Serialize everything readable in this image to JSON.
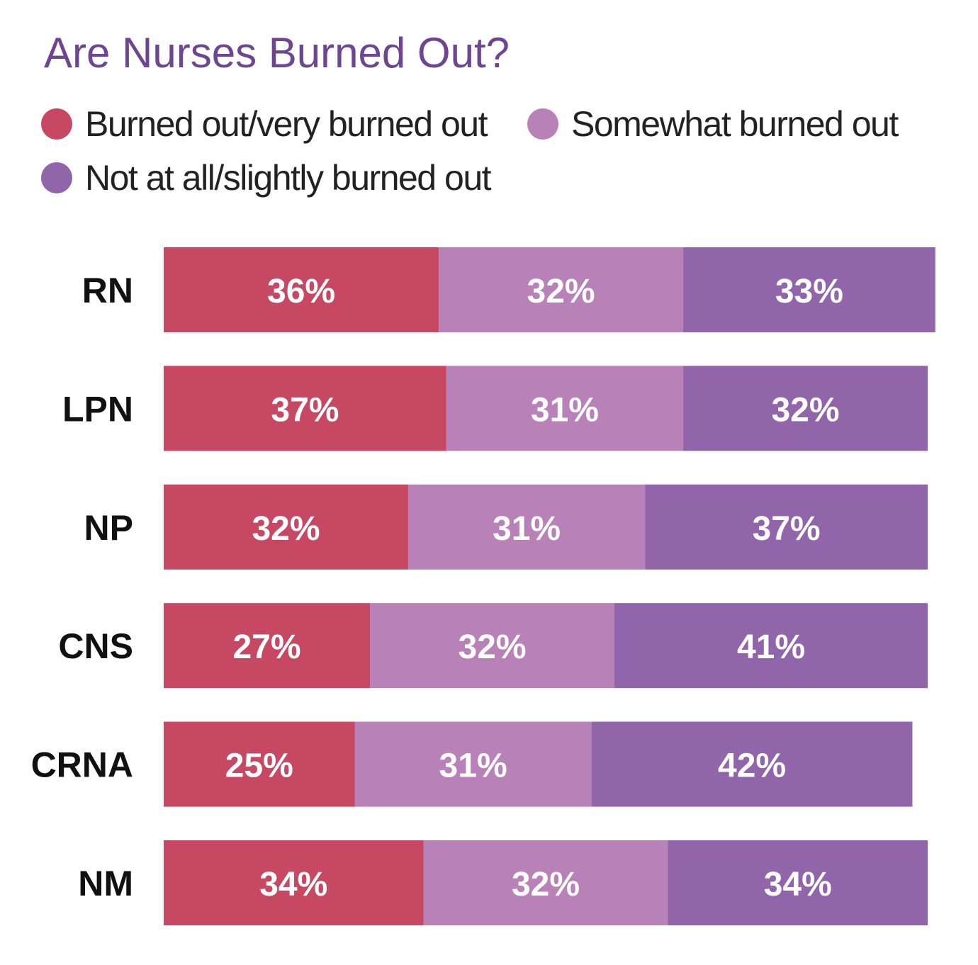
{
  "chart_data": {
    "type": "bar",
    "orientation": "horizontal-stacked",
    "title": "Are Nurses Burned Out?",
    "categories": [
      "RN",
      "LPN",
      "NP",
      "CNS",
      "CRNA",
      "NM"
    ],
    "series": [
      {
        "name": "Burned out/very burned out",
        "color": "#C64863",
        "values": [
          36,
          37,
          32,
          27,
          25,
          34
        ],
        "labels": [
          "36%",
          "37%",
          "32%",
          "27%",
          "25%",
          "34%"
        ]
      },
      {
        "name": "Somewhat burned out",
        "color": "#B881B8",
        "values": [
          32,
          31,
          31,
          32,
          31,
          32
        ],
        "labels": [
          "32%",
          "31%",
          "31%",
          "32%",
          "31%",
          "32%"
        ]
      },
      {
        "name": "Not at all/slightly burned out",
        "color": "#9065A9",
        "values": [
          33,
          32,
          37,
          41,
          42,
          34
        ],
        "labels": [
          "33%",
          "32%",
          "37%",
          "41%",
          "42%",
          "34%"
        ]
      }
    ],
    "xlim": [
      0,
      100
    ],
    "grid": false,
    "legend_placement": "top"
  }
}
